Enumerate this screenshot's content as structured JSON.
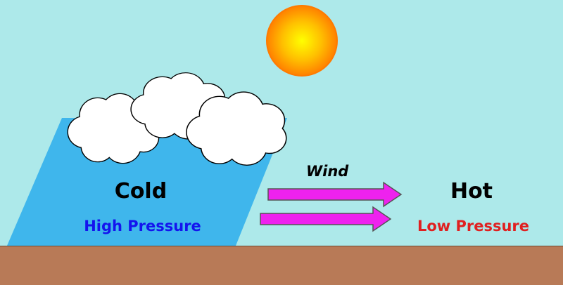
{
  "colors": {
    "sky": "#ade9ea",
    "ground": "#b87a57",
    "cold_air": "#3fb6ec",
    "sun_center": "#ffff00",
    "sun_edge": "#ff8000",
    "arrow": "#ee22ee",
    "high_pressure_text": "#1414ee",
    "low_pressure_text": "#e02020"
  },
  "icons": [
    "sun-icon",
    "cloud-icon",
    "right-arrow-icon"
  ],
  "labels": {
    "cold": "Cold",
    "high_pressure": "High Pressure",
    "hot": "Hot",
    "low_pressure": "Low Pressure",
    "wind": "Wind"
  }
}
